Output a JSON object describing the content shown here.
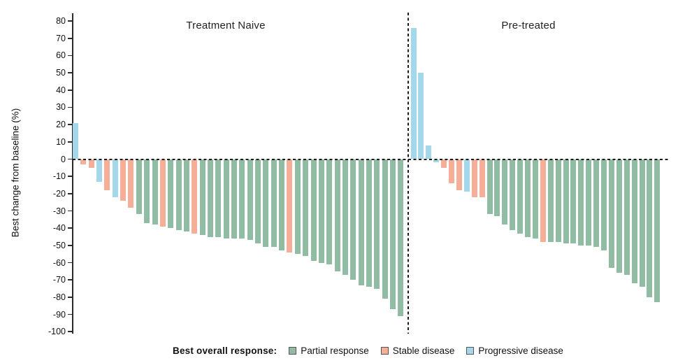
{
  "chart_data": {
    "type": "bar",
    "subtype": "waterfall-tumor-response",
    "title": "",
    "ylabel": "Best change from baseline (%)",
    "ylim": [
      -100,
      80
    ],
    "ytick_step": 10,
    "yticks": [
      80,
      70,
      60,
      50,
      40,
      30,
      20,
      10,
      0,
      -10,
      -20,
      -30,
      -40,
      -50,
      -60,
      -70,
      -80,
      -90,
      -100
    ],
    "zero_baseline": "dashed",
    "group_divider": "dashed-vertical",
    "grid": "off",
    "groups": [
      {
        "label": "Treatment Naive",
        "values": [
          21,
          -3,
          -5,
          -13,
          -18,
          -22,
          -24,
          -28,
          -32,
          -37,
          -38,
          -39,
          -40,
          -41,
          -42,
          -43,
          -44,
          -45,
          -45,
          -46,
          -46,
          -46,
          -47,
          -49,
          -51,
          -51,
          -53,
          -54,
          -55,
          -56,
          -59,
          -60,
          -61,
          -65,
          -67,
          -70,
          -73,
          -74,
          -75,
          -81,
          -87,
          -91
        ],
        "responses": [
          "PD",
          "SD",
          "SD",
          "PD",
          "SD",
          "PD",
          "SD",
          "SD",
          "PR",
          "PR",
          "PR",
          "SD",
          "PR",
          "PR",
          "PR",
          "SD",
          "PR",
          "PR",
          "PR",
          "PR",
          "PR",
          "PR",
          "PR",
          "PR",
          "PR",
          "PR",
          "PR",
          "SD",
          "PR",
          "PR",
          "PR",
          "PR",
          "PR",
          "PR",
          "PR",
          "PR",
          "PR",
          "PR",
          "PR",
          "PR",
          "PR",
          "PR"
        ]
      },
      {
        "label": "Pre-treated",
        "values": [
          76,
          50,
          8,
          -2,
          -5,
          -14,
          -18,
          -19,
          -22,
          -22,
          -32,
          -33,
          -38,
          -41,
          -43,
          -45,
          -46,
          -48,
          -48,
          -48,
          -49,
          -49,
          -50,
          -50,
          -51,
          -53,
          -63,
          -66,
          -67,
          -72,
          -74,
          -80,
          -83
        ],
        "responses": [
          "PD",
          "PD",
          "PD",
          "PD",
          "SD",
          "SD",
          "SD",
          "PD",
          "SD",
          "SD",
          "PR",
          "PR",
          "PR",
          "PR",
          "PR",
          "PR",
          "PR",
          "SD",
          "PR",
          "PR",
          "PR",
          "PR",
          "PR",
          "PR",
          "PR",
          "PR",
          "PR",
          "PR",
          "PR",
          "PR",
          "PR",
          "PR",
          "PR"
        ]
      }
    ],
    "legend": {
      "title": "Best overall response:",
      "position": "bottom",
      "entries": [
        {
          "code": "PR",
          "label": "Partial response",
          "color": "#8fbca3"
        },
        {
          "code": "SD",
          "label": "Stable disease",
          "color": "#f5af99"
        },
        {
          "code": "PD",
          "label": "Progressive disease",
          "color": "#a5d7ea"
        }
      ]
    },
    "colors": {
      "axis": "#2a2a2a",
      "baseline_dash": "#1b1b1b",
      "background": "#ffffff"
    }
  }
}
